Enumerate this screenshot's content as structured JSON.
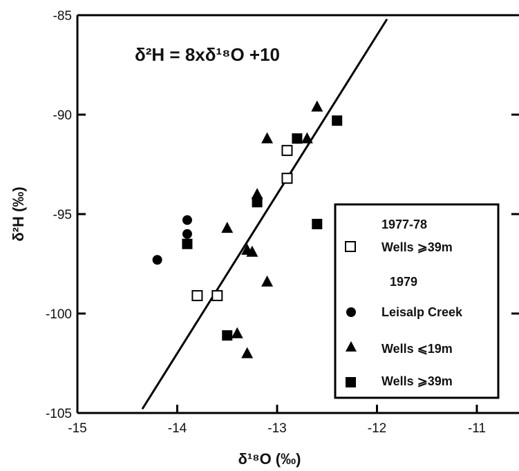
{
  "chart_data": {
    "type": "scatter",
    "title": "",
    "xlabel": "δ¹⁸O (‰)",
    "ylabel": "δ²H (‰)",
    "xlim": [
      -15,
      -10.5
    ],
    "ylim": [
      -105,
      -85
    ],
    "x_ticks": [
      -15,
      -14,
      -13,
      -12,
      -11
    ],
    "y_ticks": [
      -85,
      -90,
      -95,
      -100,
      -105
    ],
    "grid": false,
    "legend_position": "lower-right",
    "equation": {
      "text": "δ²H = 8xδ¹⁸O +10",
      "slope": 8,
      "intercept": 10,
      "x_range": [
        -14.35,
        -11.9
      ]
    },
    "legend": [
      {
        "heading": "1977-78"
      },
      {
        "marker": "open-square",
        "label": "Wells ⩾39m"
      },
      {
        "heading": "1979"
      },
      {
        "marker": "filled-circle",
        "label": "Leisalp Creek"
      },
      {
        "marker": "filled-triangle",
        "label": "Wells ⩽19m"
      },
      {
        "marker": "filled-square",
        "label": "Wells ⩾39m"
      }
    ],
    "series": [
      {
        "name": "Wells ⩾39m (1977-78)",
        "marker": "open-square",
        "points": [
          [
            -12.9,
            -91.8
          ],
          [
            -12.9,
            -93.2
          ],
          [
            -13.8,
            -99.1
          ],
          [
            -13.6,
            -99.1
          ]
        ]
      },
      {
        "name": "Leisalp Creek (1979)",
        "marker": "filled-circle",
        "points": [
          [
            -14.2,
            -97.3
          ],
          [
            -13.9,
            -95.3
          ],
          [
            -13.9,
            -96.0
          ]
        ]
      },
      {
        "name": "Wells ⩽19m (1979)",
        "marker": "filled-triangle",
        "points": [
          [
            -12.6,
            -89.6
          ],
          [
            -12.7,
            -91.2
          ],
          [
            -13.1,
            -91.2
          ],
          [
            -13.2,
            -94.0
          ],
          [
            -13.5,
            -95.7
          ],
          [
            -13.3,
            -96.8
          ],
          [
            -13.25,
            -96.9
          ],
          [
            -13.1,
            -98.4
          ],
          [
            -13.4,
            -101.0
          ],
          [
            -13.3,
            -102.0
          ]
        ]
      },
      {
        "name": "Wells ⩾39m (1979)",
        "marker": "filled-square",
        "points": [
          [
            -12.4,
            -90.3
          ],
          [
            -12.8,
            -91.2
          ],
          [
            -13.2,
            -94.4
          ],
          [
            -12.6,
            -95.5
          ],
          [
            -13.9,
            -96.5
          ],
          [
            -13.5,
            -101.1
          ]
        ]
      }
    ]
  }
}
